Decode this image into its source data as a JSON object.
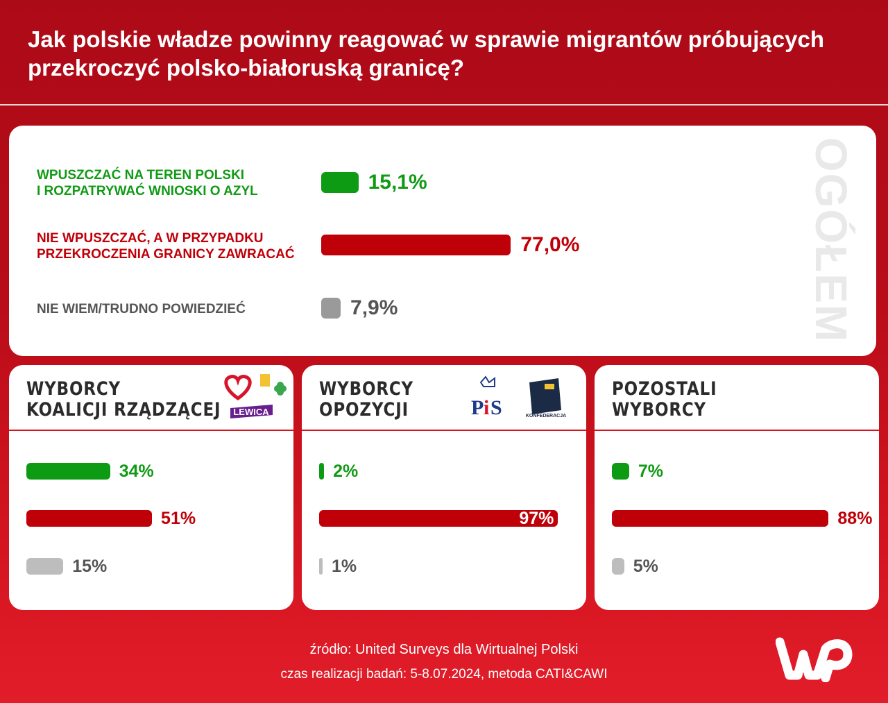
{
  "title": "Jak polskie władze powinny reagować w sprawie migrantów próbujących przekroczyć polsko-białoruską granicę?",
  "colors": {
    "green": "#0d9b14",
    "red": "#c00008",
    "gray": "#9a9a9a",
    "light_gray": "#bdbdbd"
  },
  "chart_data": [
    {
      "type": "bar",
      "title": "OGÓŁEM",
      "categories": [
        "WPUSZCZAĆ NA TEREN POLSKI I ROZPATRYWAĆ WNIOSKI O AZYL",
        "NIE WPUSZCZAĆ, A W PRZYPADKU PRZEKROCZENIA GRANICY ZAWRACAĆ",
        "NIE WIEM/TRUDNO POWIEDZIEĆ"
      ],
      "label_lines": [
        [
          "WPUSZCZAĆ NA TEREN POLSKI",
          "I ROZPATRYWAĆ WNIOSKI O AZYL"
        ],
        [
          "NIE WPUSZCZAĆ, A W PRZYPADKU",
          "PRZEKROCZENIA GRANICY ZAWRACAĆ"
        ],
        [
          "NIE WIEM/TRUDNO POWIEDZIEĆ"
        ]
      ],
      "values": [
        15.1,
        77.0,
        7.9
      ],
      "value_labels": [
        "15,1%",
        "77,0%",
        "7,9%"
      ],
      "ylim": [
        0,
        100
      ]
    },
    {
      "type": "bar",
      "title_lines": [
        "WYBORCY",
        "KOALICJI RZĄDZĄCEJ"
      ],
      "logos": [
        "KO",
        "Polska 2050",
        "PSL",
        "LEWICA"
      ],
      "values": [
        34,
        51,
        15
      ],
      "value_labels": [
        "34%",
        "51%",
        "15%"
      ]
    },
    {
      "type": "bar",
      "title_lines": [
        "WYBORCY",
        "OPOZYCJI"
      ],
      "logos": [
        "PiS",
        "KONFEDERACJA"
      ],
      "values": [
        2,
        97,
        1
      ],
      "value_labels": [
        "2%",
        "97%",
        "1%"
      ]
    },
    {
      "type": "bar",
      "title_lines": [
        "POZOSTALI",
        "WYBORCY"
      ],
      "values": [
        7,
        88,
        5
      ],
      "value_labels": [
        "7%",
        "88%",
        "5%"
      ]
    }
  ],
  "footer": {
    "source": "źródło: United Surveys dla Wirtualnej Polski",
    "details": "czas realizacji badań: 5-8.07.2024, metoda CATI&CAWI",
    "logo": "WP"
  }
}
